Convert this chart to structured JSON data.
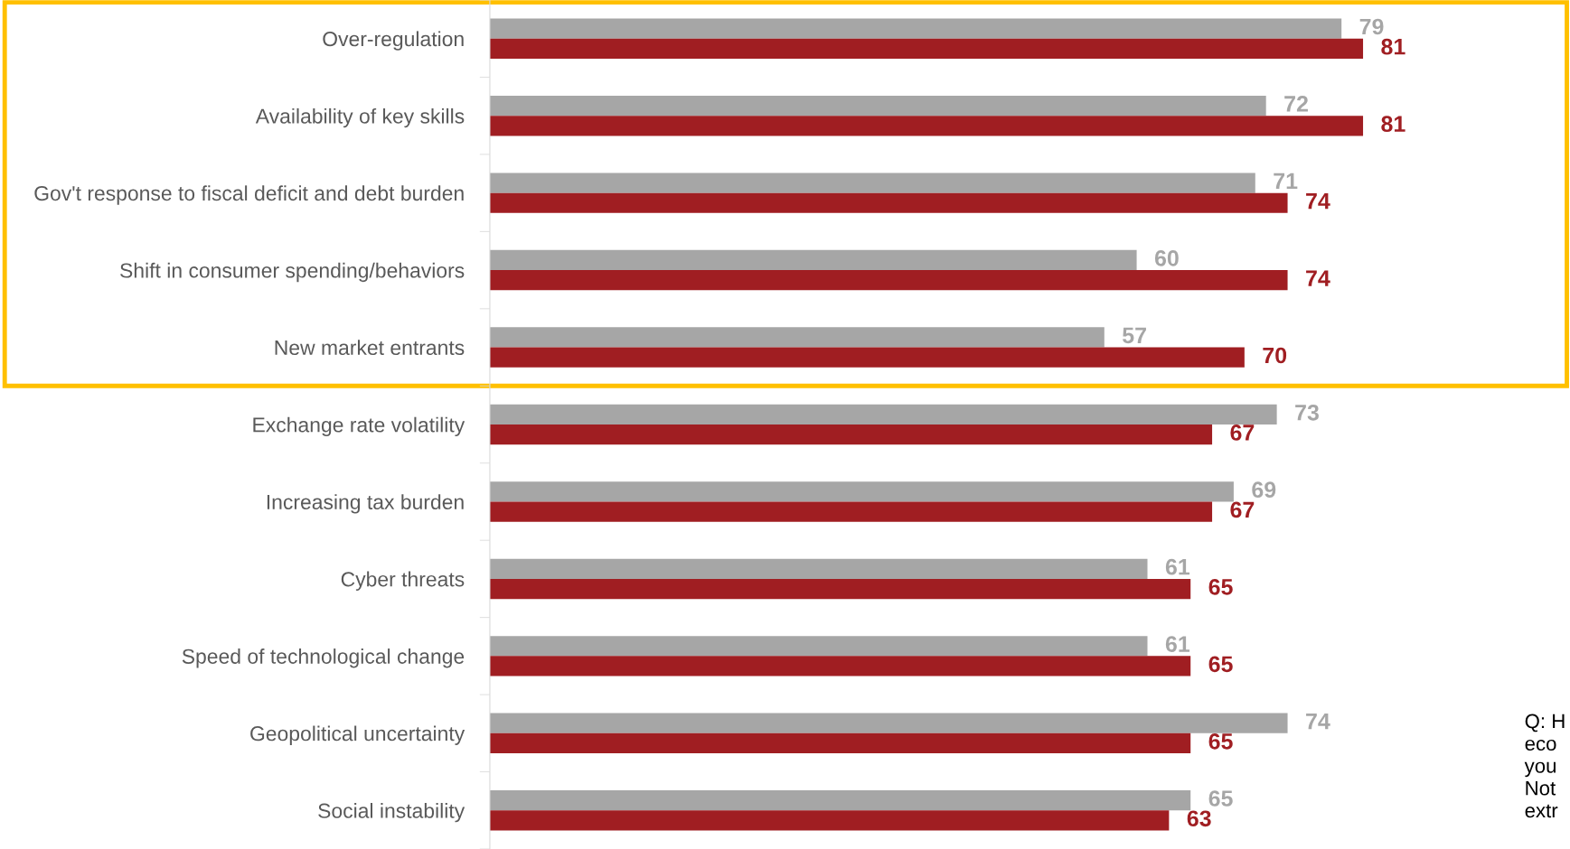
{
  "chart_data": {
    "type": "bar",
    "orientation": "horizontal",
    "categories": [
      "Over-regulation",
      "Availability of key skills",
      "Gov't response to fiscal deficit and debt burden",
      "Shift in consumer spending/behaviors",
      "New market entrants",
      "Exchange rate volatility",
      "Increasing tax burden",
      "Cyber threats",
      "Speed of technological change",
      "Geopolitical uncertainty",
      "Social instability"
    ],
    "series": [
      {
        "color": "#a6a6a6",
        "values": [
          79,
          72,
          71,
          60,
          57,
          73,
          69,
          61,
          61,
          74,
          65
        ]
      },
      {
        "color": "#a01e22",
        "values": [
          81,
          81,
          74,
          74,
          70,
          67,
          67,
          65,
          65,
          65,
          63
        ]
      }
    ],
    "tick_labels": "y",
    "data_labels": true,
    "grid": false,
    "legend": false,
    "annotations": [
      "Q: H\neco\nyou\nNot\nextr"
    ]
  }
}
